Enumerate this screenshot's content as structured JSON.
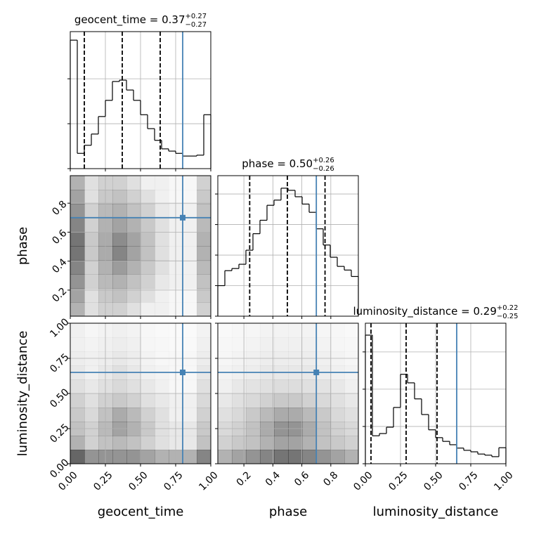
{
  "chart_data": [
    {
      "type": "histogram",
      "title": "geocent_time = 0.37",
      "title_upper": "+0.27",
      "title_lower": "−0.27",
      "bins": [
        0,
        0.05,
        0.1,
        0.15,
        0.2,
        0.25,
        0.3,
        0.35,
        0.4,
        0.45,
        0.5,
        0.55,
        0.6,
        0.65,
        0.7,
        0.75,
        0.8,
        0.85,
        0.9,
        0.95,
        1
      ],
      "values": [
        2.86,
        0.34,
        0.52,
        0.77,
        1.16,
        1.52,
        1.94,
        1.97,
        1.75,
        1.52,
        1.2,
        0.89,
        0.63,
        0.44,
        0.39,
        0.34,
        0.28,
        0.28,
        0.3,
        1.2
      ],
      "quantiles": [
        0.1,
        0.37,
        0.64
      ],
      "truth": 0.8,
      "color": "#000000",
      "truth_color": "#4682b4",
      "xlim": [
        0,
        1
      ],
      "ylim": [
        0,
        3.05
      ],
      "xticks": [
        {
          "value": 0,
          "label": "0.00"
        },
        {
          "value": 0.25,
          "label": "0.25"
        },
        {
          "value": 0.5,
          "label": "0.50"
        },
        {
          "value": 0.75,
          "label": "0.75"
        },
        {
          "value": 1,
          "label": "1.00"
        }
      ],
      "yticks": [
        0,
        1,
        2
      ],
      "xticklabels": false,
      "yticklabels": false,
      "grid": true
    },
    {
      "type": "density2d",
      "ylabel": "phase",
      "density": [
        [
          0.5,
          0.2,
          0.3,
          0.3,
          0.2,
          0.1,
          0.1,
          0.05,
          0.05,
          0.3
        ],
        [
          0.6,
          0.2,
          0.35,
          0.4,
          0.3,
          0.2,
          0.1,
          0.05,
          0.05,
          0.35
        ],
        [
          0.7,
          0.3,
          0.45,
          0.5,
          0.4,
          0.3,
          0.15,
          0.1,
          0.1,
          0.4
        ],
        [
          0.8,
          0.3,
          0.5,
          0.65,
          0.5,
          0.35,
          0.2,
          0.1,
          0.1,
          0.45
        ],
        [
          0.9,
          0.35,
          0.55,
          0.8,
          0.6,
          0.4,
          0.2,
          0.1,
          0.1,
          0.5
        ],
        [
          0.9,
          0.35,
          0.55,
          0.75,
          0.6,
          0.4,
          0.2,
          0.1,
          0.1,
          0.5
        ],
        [
          0.8,
          0.3,
          0.5,
          0.6,
          0.5,
          0.35,
          0.2,
          0.1,
          0.1,
          0.45
        ],
        [
          0.7,
          0.3,
          0.45,
          0.5,
          0.4,
          0.3,
          0.15,
          0.1,
          0.1,
          0.4
        ],
        [
          0.6,
          0.2,
          0.35,
          0.4,
          0.3,
          0.2,
          0.1,
          0.05,
          0.05,
          0.35
        ],
        [
          0.5,
          0.2,
          0.3,
          0.3,
          0.2,
          0.1,
          0.1,
          0.05,
          0.05,
          0.3
        ]
      ],
      "truth": [
        0.8,
        0.7
      ],
      "truth_color": "#4682b4",
      "xlim": [
        0,
        1
      ],
      "ylim": [
        0.02,
        0.99
      ],
      "xticks": [
        {
          "value": 0,
          "label": "0.00"
        },
        {
          "value": 0.25,
          "label": "0.25"
        },
        {
          "value": 0.5,
          "label": "0.50"
        },
        {
          "value": 0.75,
          "label": "0.75"
        },
        {
          "value": 1,
          "label": "1.00"
        }
      ],
      "yticks": [
        0.2,
        0.4,
        0.6,
        0.8
      ],
      "xticklabels": false,
      "yticklabels": true,
      "grid": true
    },
    {
      "type": "histogram",
      "title": "phase = 0.50",
      "title_upper": "+0.26",
      "title_lower": "−0.26",
      "bins": [
        0.02,
        0.0685,
        0.117,
        0.1655,
        0.214,
        0.2625,
        0.311,
        0.3595,
        0.408,
        0.4565,
        0.505,
        0.5535,
        0.602,
        0.6505,
        0.699,
        0.7475,
        0.796,
        0.8445,
        0.893,
        0.9415,
        0.99
      ],
      "values": [
        1.0,
        1.49,
        1.56,
        1.7,
        2.16,
        2.7,
        3.14,
        3.63,
        3.8,
        4.19,
        4.12,
        3.91,
        3.67,
        3.4,
        2.86,
        2.33,
        1.93,
        1.63,
        1.51,
        1.3
      ],
      "quantiles": [
        0.24,
        0.5,
        0.76
      ],
      "truth": 0.7,
      "color": "#000000",
      "truth_color": "#4682b4",
      "xlim": [
        0.02,
        0.99
      ],
      "ylim": [
        0,
        4.6
      ],
      "xticks": [
        0.2,
        0.4,
        0.6,
        0.8
      ],
      "yticks": [
        0,
        1,
        2,
        3,
        4
      ],
      "xticklabels": false,
      "yticklabels": false,
      "grid": true
    },
    {
      "type": "density2d",
      "ylabel": "luminosity_distance",
      "xlabel": "geocent_time",
      "density": [
        [
          1,
          0.7,
          0.7,
          0.7,
          0.7,
          0.6,
          0.5,
          0.5,
          0.5,
          0.8
        ],
        [
          0.5,
          0.3,
          0.4,
          0.45,
          0.4,
          0.3,
          0.2,
          0.15,
          0.15,
          0.4
        ],
        [
          0.4,
          0.3,
          0.45,
          0.6,
          0.5,
          0.35,
          0.2,
          0.15,
          0.15,
          0.35
        ],
        [
          0.35,
          0.25,
          0.4,
          0.55,
          0.45,
          0.3,
          0.2,
          0.1,
          0.1,
          0.3
        ],
        [
          0.3,
          0.2,
          0.3,
          0.35,
          0.3,
          0.2,
          0.15,
          0.1,
          0.1,
          0.25
        ],
        [
          0.2,
          0.15,
          0.2,
          0.25,
          0.2,
          0.15,
          0.1,
          0.05,
          0.05,
          0.2
        ],
        [
          0.15,
          0.1,
          0.15,
          0.2,
          0.15,
          0.1,
          0.08,
          0.05,
          0.05,
          0.15
        ],
        [
          0.12,
          0.1,
          0.12,
          0.15,
          0.12,
          0.08,
          0.05,
          0.05,
          0.05,
          0.12
        ],
        [
          0.1,
          0.08,
          0.1,
          0.12,
          0.1,
          0.06,
          0.05,
          0.04,
          0.04,
          0.1
        ],
        [
          0.1,
          0.06,
          0.08,
          0.1,
          0.08,
          0.05,
          0.04,
          0.03,
          0.03,
          0.08
        ]
      ],
      "truth": [
        0.8,
        0.65
      ],
      "truth_color": "#4682b4",
      "xlim": [
        0,
        1
      ],
      "ylim": [
        0,
        1
      ],
      "xticks": [
        {
          "value": 0,
          "label": "0.00"
        },
        {
          "value": 0.25,
          "label": "0.25"
        },
        {
          "value": 0.5,
          "label": "0.50"
        },
        {
          "value": 0.75,
          "label": "0.75"
        },
        {
          "value": 1,
          "label": "1.00"
        }
      ],
      "yticks": [
        {
          "value": 0,
          "label": "0.00"
        },
        {
          "value": 0.25,
          "label": "0.25"
        },
        {
          "value": 0.5,
          "label": "0.50"
        },
        {
          "value": 0.75,
          "label": "0.75"
        },
        {
          "value": 1,
          "label": "1.00"
        }
      ],
      "xticklabels": true,
      "yticklabels": true,
      "grid": true
    },
    {
      "type": "density2d",
      "xlabel": "phase",
      "density": [
        [
          0.5,
          0.6,
          0.7,
          0.8,
          0.9,
          0.9,
          0.8,
          0.7,
          0.6,
          0.5
        ],
        [
          0.3,
          0.35,
          0.4,
          0.5,
          0.6,
          0.6,
          0.5,
          0.4,
          0.35,
          0.3
        ],
        [
          0.25,
          0.3,
          0.4,
          0.55,
          0.7,
          0.7,
          0.55,
          0.4,
          0.3,
          0.25
        ],
        [
          0.2,
          0.25,
          0.35,
          0.45,
          0.55,
          0.55,
          0.45,
          0.35,
          0.25,
          0.2
        ],
        [
          0.15,
          0.2,
          0.25,
          0.3,
          0.35,
          0.35,
          0.3,
          0.25,
          0.2,
          0.15
        ],
        [
          0.1,
          0.15,
          0.18,
          0.2,
          0.22,
          0.22,
          0.2,
          0.18,
          0.15,
          0.1
        ],
        [
          0.08,
          0.1,
          0.12,
          0.15,
          0.15,
          0.15,
          0.15,
          0.12,
          0.1,
          0.08
        ],
        [
          0.06,
          0.08,
          0.1,
          0.12,
          0.12,
          0.12,
          0.12,
          0.1,
          0.08,
          0.06
        ],
        [
          0.05,
          0.06,
          0.08,
          0.1,
          0.1,
          0.1,
          0.1,
          0.08,
          0.06,
          0.05
        ],
        [
          0.04,
          0.05,
          0.06,
          0.08,
          0.08,
          0.08,
          0.08,
          0.06,
          0.05,
          0.04
        ]
      ],
      "truth": [
        0.7,
        0.65
      ],
      "truth_color": "#4682b4",
      "xlim": [
        0.02,
        0.99
      ],
      "ylim": [
        0,
        1
      ],
      "xticks": [
        0.2,
        0.4,
        0.6,
        0.8
      ],
      "yticks": [
        {
          "value": 0,
          "label": "0.00"
        },
        {
          "value": 0.25,
          "label": "0.25"
        },
        {
          "value": 0.5,
          "label": "0.50"
        },
        {
          "value": 0.75,
          "label": "0.75"
        },
        {
          "value": 1,
          "label": "1.00"
        }
      ],
      "xticklabels": true,
      "yticklabels": false,
      "grid": true
    },
    {
      "type": "histogram",
      "title": "luminosity_distance = 0.29",
      "title_upper": "+0.22",
      "title_lower": "−0.25",
      "xlabel": "luminosity_distance",
      "bins": [
        0,
        0.05,
        0.1,
        0.15,
        0.2,
        0.25,
        0.3,
        0.35,
        0.4,
        0.45,
        0.5,
        0.55,
        0.6,
        0.65,
        0.7,
        0.75,
        0.8,
        0.85,
        0.9,
        0.95,
        1
      ],
      "values": [
        3.45,
        0.75,
        0.81,
        0.98,
        1.51,
        2.4,
        2.17,
        1.74,
        1.32,
        0.91,
        0.7,
        0.6,
        0.51,
        0.42,
        0.36,
        0.32,
        0.26,
        0.23,
        0.19,
        0.43
      ],
      "quantiles": [
        0.04,
        0.29,
        0.51
      ],
      "truth": 0.65,
      "color": "#000000",
      "truth_color": "#4682b4",
      "xlim": [
        0,
        1
      ],
      "ylim": [
        0,
        3.77
      ],
      "xticks": [
        {
          "value": 0,
          "label": "0.00"
        },
        {
          "value": 0.25,
          "label": "0.25"
        },
        {
          "value": 0.5,
          "label": "0.50"
        },
        {
          "value": 0.75,
          "label": "0.75"
        },
        {
          "value": 1,
          "label": "1.00"
        }
      ],
      "yticks": [
        0,
        1,
        2,
        3
      ],
      "xticklabels": true,
      "yticklabels": false,
      "grid": true
    }
  ]
}
